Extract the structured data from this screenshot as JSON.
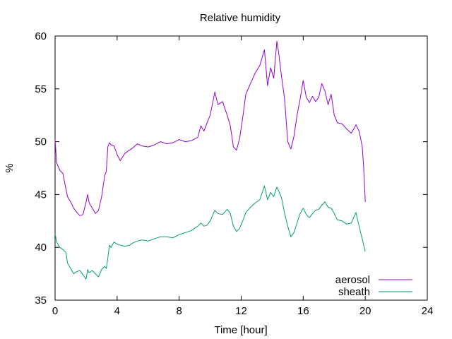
{
  "chart_data": {
    "type": "line",
    "title": "Relative humidity",
    "xlabel": "Time [hour]",
    "ylabel": "%",
    "xlim": [
      0,
      24
    ],
    "ylim": [
      35,
      60
    ],
    "xticks": [
      0,
      4,
      8,
      12,
      16,
      20,
      24
    ],
    "yticks": [
      35,
      40,
      45,
      50,
      55,
      60
    ],
    "grid": false,
    "legend_position": "bottom-right",
    "series": [
      {
        "name": "aerosol",
        "color": "#9400d3",
        "x": [
          0,
          0.1,
          0.3,
          0.5,
          0.7,
          0.8,
          1.0,
          1.2,
          1.4,
          1.6,
          1.8,
          2.0,
          2.1,
          2.2,
          2.4,
          2.6,
          2.8,
          3.0,
          3.2,
          3.3,
          3.4,
          3.5,
          3.6,
          3.8,
          4.0,
          4.2,
          4.5,
          4.8,
          5.0,
          5.3,
          5.6,
          6.0,
          6.4,
          6.8,
          7.2,
          7.6,
          8.0,
          8.4,
          8.8,
          9.2,
          9.4,
          9.6,
          9.8,
          10.0,
          10.3,
          10.5,
          10.8,
          11.1,
          11.3,
          11.5,
          11.7,
          11.9,
          12.1,
          12.3,
          12.6,
          12.9,
          13.2,
          13.5,
          13.7,
          13.9,
          14.1,
          14.3,
          14.4,
          14.6,
          14.8,
          15.0,
          15.2,
          15.4,
          15.6,
          15.8,
          16.0,
          16.2,
          16.4,
          16.6,
          16.8,
          17.0,
          17.2,
          17.4,
          17.6,
          17.8,
          18.0,
          18.2,
          18.5,
          18.8,
          19.1,
          19.4,
          19.6,
          19.8,
          19.9,
          20.0
        ],
        "values": [
          50.2,
          48.0,
          47.3,
          47.0,
          45.5,
          44.8,
          44.3,
          43.7,
          43.3,
          43.0,
          43.1,
          44.3,
          45.0,
          44.2,
          43.7,
          43.2,
          43.5,
          44.8,
          46.8,
          47.2,
          49.5,
          49.9,
          49.7,
          49.6,
          48.8,
          48.2,
          48.9,
          49.2,
          49.4,
          49.8,
          49.6,
          49.5,
          49.7,
          50.0,
          49.8,
          49.9,
          50.2,
          50.0,
          50.1,
          50.4,
          51.5,
          51.0,
          51.8,
          52.5,
          54.7,
          53.5,
          53.8,
          52.5,
          51.5,
          49.5,
          49.2,
          50.3,
          52.3,
          54.5,
          55.5,
          56.5,
          57.2,
          58.7,
          55.3,
          57.0,
          56.0,
          59.5,
          58.6,
          56.2,
          54.0,
          50.0,
          49.3,
          50.5,
          52.5,
          54.0,
          55.8,
          54.2,
          53.7,
          54.3,
          53.8,
          54.2,
          55.5,
          54.8,
          53.5,
          54.5,
          52.5,
          51.8,
          51.7,
          51.2,
          50.8,
          51.6,
          51.0,
          49.6,
          47.5,
          44.3
        ]
      },
      {
        "name": "sheath",
        "color": "#009e73",
        "x": [
          0,
          0.1,
          0.3,
          0.5,
          0.7,
          0.8,
          1.0,
          1.2,
          1.4,
          1.6,
          1.8,
          2.0,
          2.1,
          2.2,
          2.4,
          2.6,
          2.8,
          3.0,
          3.2,
          3.3,
          3.4,
          3.5,
          3.6,
          3.8,
          4.0,
          4.2,
          4.5,
          4.8,
          5.0,
          5.3,
          5.6,
          6.0,
          6.4,
          6.8,
          7.2,
          7.6,
          8.0,
          8.4,
          8.8,
          9.2,
          9.4,
          9.6,
          9.8,
          10.0,
          10.3,
          10.5,
          10.8,
          11.1,
          11.3,
          11.5,
          11.7,
          11.9,
          12.1,
          12.3,
          12.6,
          12.9,
          13.2,
          13.5,
          13.7,
          13.9,
          14.1,
          14.3,
          14.4,
          14.6,
          14.8,
          15.0,
          15.2,
          15.4,
          15.6,
          15.8,
          16.0,
          16.2,
          16.4,
          16.6,
          16.8,
          17.0,
          17.2,
          17.4,
          17.6,
          17.8,
          18.0,
          18.2,
          18.5,
          18.8,
          19.1,
          19.4,
          19.6,
          19.8,
          19.9,
          20.0
        ],
        "values": [
          41.3,
          40.5,
          40.0,
          39.8,
          39.5,
          38.5,
          38.0,
          37.5,
          37.7,
          37.8,
          37.4,
          37.0,
          37.9,
          37.6,
          37.8,
          37.5,
          37.2,
          37.9,
          38.2,
          38.0,
          39.0,
          40.2,
          40.0,
          40.5,
          40.3,
          40.2,
          40.1,
          40.2,
          40.4,
          40.6,
          40.7,
          40.6,
          40.8,
          41.0,
          41.0,
          40.9,
          41.2,
          41.4,
          41.6,
          42.0,
          42.3,
          42.0,
          42.1,
          42.5,
          43.5,
          43.2,
          43.1,
          43.6,
          43.2,
          42.0,
          41.5,
          41.8,
          42.5,
          43.3,
          43.8,
          44.2,
          44.5,
          45.8,
          44.5,
          45.2,
          44.8,
          45.7,
          45.4,
          44.7,
          43.2,
          42.0,
          41.0,
          41.4,
          42.3,
          43.2,
          43.7,
          43.1,
          42.8,
          43.2,
          43.5,
          43.6,
          44.0,
          44.3,
          43.8,
          43.7,
          43.2,
          42.6,
          42.5,
          42.2,
          42.3,
          43.3,
          42.0,
          40.8,
          40.2,
          39.6
        ]
      }
    ]
  }
}
